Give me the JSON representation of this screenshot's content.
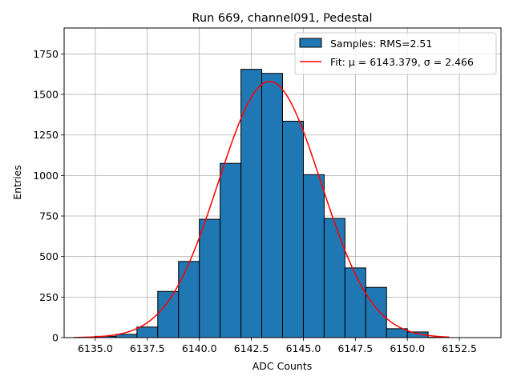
{
  "chart_data": {
    "type": "bar",
    "title": "Run 669, channel091, Pedestal",
    "xlabel": "ADC Counts",
    "ylabel": "Entries",
    "xlim": [
      6133.5,
      6154.5
    ],
    "ylim": [
      0,
      1910
    ],
    "xticks": [
      6135.0,
      6137.5,
      6140.0,
      6142.5,
      6145.0,
      6147.5,
      6150.0,
      6152.5
    ],
    "xtick_labels": [
      "6135.0",
      "6137.5",
      "6140.0",
      "6142.5",
      "6145.0",
      "6147.5",
      "6150.0",
      "6152.5"
    ],
    "yticks": [
      0,
      250,
      500,
      750,
      1000,
      1250,
      1500,
      1750
    ],
    "ytick_labels": [
      "0",
      "250",
      "500",
      "750",
      "1000",
      "1250",
      "1500",
      "1750"
    ],
    "grid": true,
    "legend_position": "top-right",
    "histogram": {
      "name": "Samples: RMS=2.51",
      "color": "#1f77b4",
      "edge_color": "#000000",
      "bin_edges": [
        6134.0,
        6135.0,
        6136.0,
        6137.0,
        6138.0,
        6139.0,
        6140.0,
        6141.0,
        6142.0,
        6143.0,
        6144.0,
        6145.0,
        6146.0,
        6147.0,
        6148.0,
        6149.0,
        6150.0,
        6151.0,
        6152.0
      ],
      "counts": [
        2,
        8,
        20,
        65,
        285,
        470,
        730,
        1075,
        1655,
        1630,
        1335,
        1005,
        735,
        430,
        310,
        55,
        35,
        2
      ]
    },
    "fit": {
      "name": "Fit: μ = 6143.379, σ = 2.466",
      "color": "#ff0000",
      "mu": 6143.379,
      "sigma": 2.466,
      "peak": 1580,
      "x_range": [
        6134.0,
        6152.0
      ]
    }
  }
}
